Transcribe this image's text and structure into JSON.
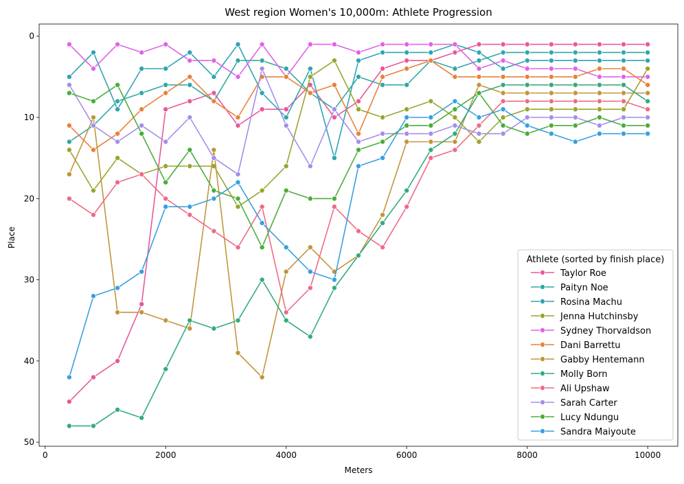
{
  "chart_data": {
    "type": "line",
    "title": "West region Women's 10,000m: Athlete Progression",
    "xlabel": "Meters",
    "ylabel": "Place",
    "xlim": [
      -100,
      10500
    ],
    "ylim": [
      50.5,
      -1.5
    ],
    "y_inverted": true,
    "xticks": [
      0,
      2000,
      4000,
      6000,
      8000,
      10000
    ],
    "yticks": [
      0,
      10,
      20,
      30,
      40,
      50
    ],
    "grid": false,
    "legend_title": "Athlete (sorted by finish place)",
    "legend_position": "lower right",
    "x": [
      400,
      800,
      1200,
      1600,
      2000,
      2400,
      2800,
      3200,
      3600,
      4000,
      4400,
      4800,
      5200,
      5600,
      6000,
      6400,
      6800,
      7200,
      7600,
      8000,
      8400,
      8800,
      9200,
      9600,
      10000
    ],
    "series": [
      {
        "name": "Taylor Roe",
        "color": "#e9589a",
        "values": [
          45,
          42,
          40,
          33,
          9,
          8,
          7,
          11,
          9,
          9,
          6,
          10,
          8,
          4,
          3,
          3,
          2,
          1,
          1,
          1,
          1,
          1,
          1,
          1,
          1
        ]
      },
      {
        "name": "Paityn Noe",
        "color": "#2fa8a4",
        "values": [
          13,
          11,
          8,
          7,
          6,
          6,
          8,
          3,
          3,
          4,
          7,
          9,
          5,
          6,
          6,
          3,
          4,
          3,
          2,
          2,
          2,
          2,
          2,
          2,
          2
        ]
      },
      {
        "name": "Rosina Machu",
        "color": "#2fa4b4",
        "values": [
          5,
          2,
          9,
          4,
          4,
          2,
          5,
          1,
          7,
          10,
          4,
          15,
          3,
          2,
          2,
          2,
          1,
          2,
          4,
          3,
          3,
          3,
          3,
          3,
          3
        ]
      },
      {
        "name": "Jenna Hutchinsby",
        "color": "#9aa42f",
        "values": [
          14,
          19,
          15,
          17,
          16,
          16,
          16,
          21,
          19,
          16,
          5,
          3,
          9,
          10,
          9,
          8,
          10,
          13,
          10,
          9,
          9,
          9,
          9,
          9,
          4
        ]
      },
      {
        "name": "Sydney Thorvaldson",
        "color": "#e162e8",
        "values": [
          1,
          4,
          1,
          2,
          1,
          3,
          3,
          5,
          1,
          5,
          1,
          1,
          2,
          1,
          1,
          1,
          1,
          4,
          3,
          4,
          4,
          4,
          5,
          5,
          5
        ]
      },
      {
        "name": "Dani Barrettu",
        "color": "#e8813a",
        "values": [
          11,
          14,
          12,
          9,
          7,
          5,
          8,
          10,
          5,
          5,
          7,
          6,
          12,
          5,
          4,
          3,
          5,
          5,
          5,
          5,
          5,
          5,
          4,
          4,
          6
        ]
      },
      {
        "name": "Gabby Hentemann",
        "color": "#c0963a",
        "values": [
          17,
          10,
          34,
          34,
          35,
          36,
          14,
          39,
          42,
          29,
          26,
          29,
          27,
          22,
          13,
          13,
          13,
          6,
          7,
          7,
          7,
          7,
          7,
          7,
          7
        ]
      },
      {
        "name": "Molly Born",
        "color": "#34aa80",
        "values": [
          48,
          48,
          46,
          47,
          41,
          35,
          36,
          35,
          30,
          35,
          37,
          31,
          27,
          23,
          19,
          14,
          12,
          7,
          6,
          6,
          6,
          6,
          6,
          6,
          8
        ]
      },
      {
        "name": "Ali Upshaw",
        "color": "#ee6b86",
        "values": [
          20,
          22,
          18,
          17,
          20,
          22,
          24,
          26,
          21,
          34,
          31,
          21,
          24,
          26,
          21,
          15,
          14,
          11,
          8,
          8,
          8,
          8,
          8,
          8,
          9
        ]
      },
      {
        "name": "Sarah Carter",
        "color": "#a48ee9",
        "values": [
          6,
          11,
          13,
          11,
          13,
          10,
          15,
          17,
          4,
          11,
          16,
          9,
          13,
          12,
          12,
          12,
          11,
          12,
          12,
          10,
          10,
          10,
          11,
          10,
          10
        ]
      },
      {
        "name": "Lucy Ndungu",
        "color": "#4aad3a",
        "values": [
          7,
          8,
          6,
          12,
          18,
          14,
          19,
          20,
          26,
          19,
          20,
          20,
          14,
          13,
          11,
          11,
          9,
          7,
          11,
          12,
          11,
          11,
          10,
          11,
          11
        ]
      },
      {
        "name": "Sandra Maiyoute",
        "color": "#38a0e0",
        "values": [
          42,
          32,
          31,
          29,
          21,
          21,
          20,
          18,
          23,
          26,
          29,
          30,
          16,
          15,
          10,
          10,
          8,
          10,
          9,
          11,
          12,
          13,
          12,
          12,
          12
        ]
      }
    ]
  }
}
